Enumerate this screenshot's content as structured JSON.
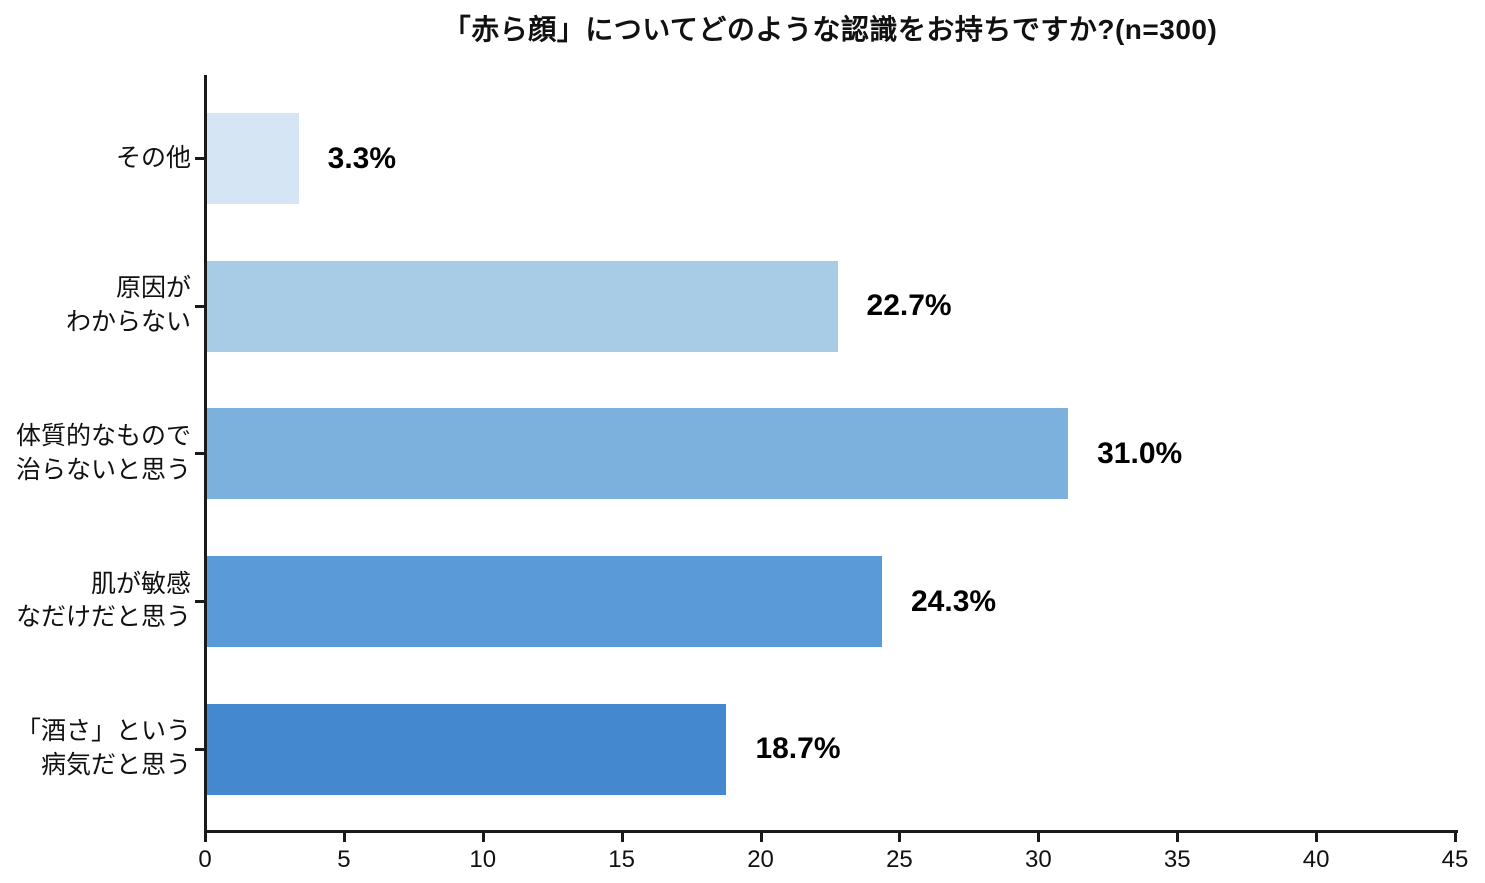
{
  "chart_data": {
    "type": "bar",
    "orientation": "horizontal",
    "title": "「赤ら顔」についてどのような認識をお持ちですか?(n=300)",
    "categories": [
      "その他",
      "原因が\nわからない",
      "体質的なもので\n治らないと思う",
      "肌が敏感\nなだけだと思う",
      "「酒さ」という\n病気だと思う"
    ],
    "values": [
      3.3,
      22.7,
      31.0,
      24.3,
      18.7
    ],
    "value_labels": [
      "3.3%",
      "22.7%",
      "31.0%",
      "24.3%",
      "18.7%"
    ],
    "bar_colors": [
      "#D6E5F3",
      "#A8CCE6",
      "#7CB0DD",
      "#5B9AD8",
      "#4488D0"
    ],
    "xlabel": "",
    "ylabel": "",
    "xlim": [
      0,
      45
    ],
    "x_ticks": [
      0,
      5,
      10,
      15,
      20,
      25,
      30,
      35,
      40,
      45
    ],
    "axis_color": "#1a1a1a",
    "grid": false,
    "legend": null
  }
}
